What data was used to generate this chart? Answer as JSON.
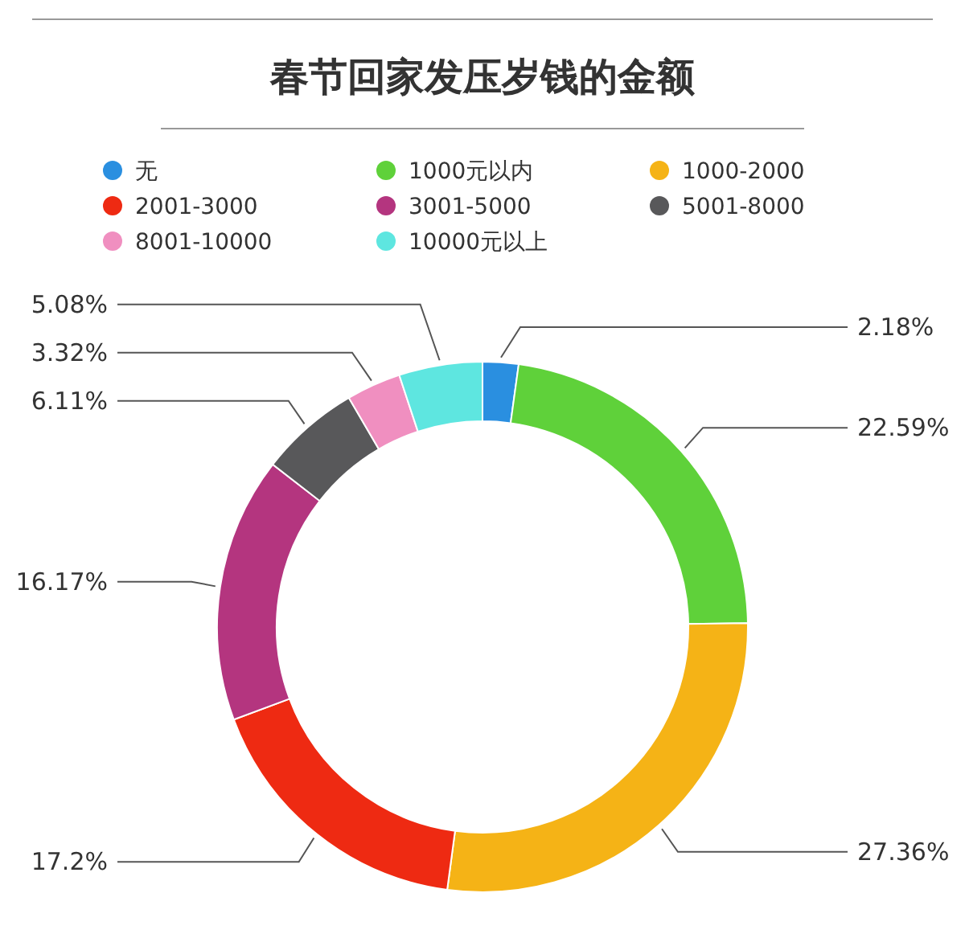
{
  "chart_data": {
    "type": "donut",
    "title": "春节回家发压岁钱的金额",
    "categories": [
      "无",
      "1000元以内",
      "1000-2000",
      "2001-3000",
      "3001-5000",
      "5001-8000",
      "8001-10000",
      "10000元以上"
    ],
    "values": [
      2.18,
      22.59,
      27.36,
      17.2,
      16.17,
      6.11,
      3.32,
      5.08
    ],
    "value_labels": [
      "2.18%",
      "22.59%",
      "27.36%",
      "17.2%",
      "16.17%",
      "6.11%",
      "3.32%",
      "5.08%"
    ],
    "colors": [
      "#2a8fe0",
      "#5fd13a",
      "#f5b316",
      "#ee2a12",
      "#b4357f",
      "#58585a",
      "#f08fc0",
      "#5ee6e0"
    ],
    "legend": "top"
  }
}
